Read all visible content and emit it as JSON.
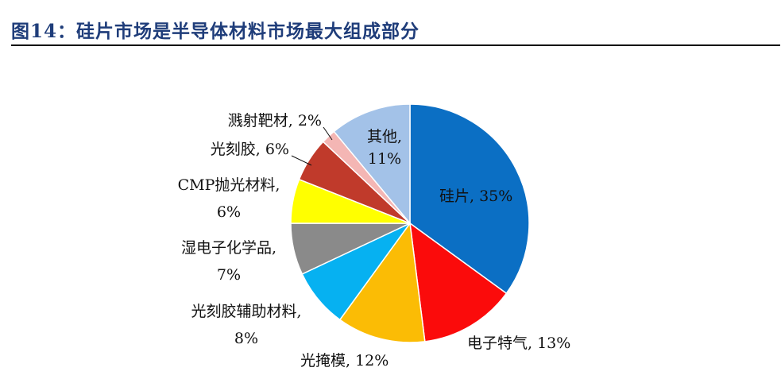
{
  "header": {
    "title": "图14：硅片市场是半导体材料市场最大组成部分"
  },
  "chart_data": {
    "type": "pie",
    "title": "",
    "start": "12 o'clock, clockwise",
    "slices": [
      {
        "name": "硅片",
        "value": 35,
        "label": "35%",
        "color": "#0b6fc4"
      },
      {
        "name": "电子特气",
        "value": 13,
        "label": "13%",
        "color": "#fb0b0b"
      },
      {
        "name": "光掩模",
        "value": 12,
        "label": "12%",
        "color": "#fbbc05"
      },
      {
        "name": "光刻胶辅助材料",
        "value": 8,
        "label": "8%",
        "color": "#06b1f1"
      },
      {
        "name": "湿电子化学品",
        "value": 7,
        "label": "7%",
        "color": "#8a8a8a"
      },
      {
        "name": "CMP抛光材料",
        "value": 6,
        "label": "6%",
        "color": "#ffff00"
      },
      {
        "name": "光刻胶",
        "value": 6,
        "label": "6%",
        "color": "#c03a2b"
      },
      {
        "name": "溅射靶材",
        "value": 2,
        "label": "2%",
        "color": "#f4b6b4"
      },
      {
        "name": "其他",
        "value": 11,
        "label": "11%",
        "color": "#a3c2e8"
      }
    ]
  }
}
